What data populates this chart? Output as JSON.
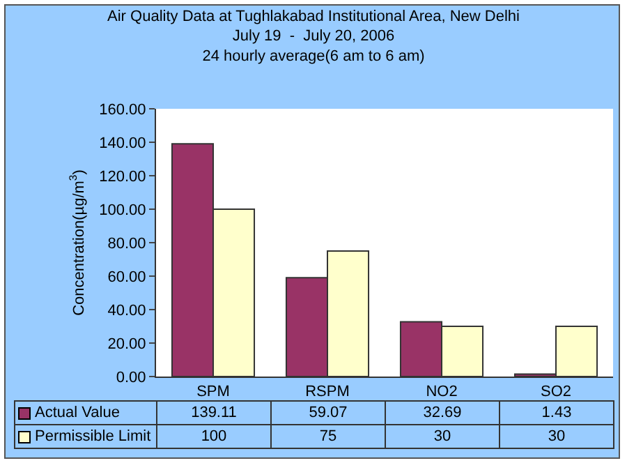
{
  "chart_data": {
    "type": "bar",
    "title": "Air Quality Data at Tughlakabad Institutional Area, New Delhi",
    "subtitle": "July 19  -  July 20, 2006\n24 hourly average(6 am to 6 am)",
    "ylabel": "Concentration(µg/m$^{3}$)",
    "categories": [
      "SPM",
      "RSPM",
      "NO2",
      "SO2"
    ],
    "series": [
      {
        "name": "Actual Value",
        "color": "#993366",
        "values": [
          139.11,
          59.07,
          32.69,
          1.43
        ]
      },
      {
        "name": "Permissible Limit",
        "color": "#ffffcc",
        "values": [
          100,
          75,
          30,
          30
        ]
      }
    ],
    "ylim": [
      0,
      160
    ],
    "yticks": [
      {
        "value": 0,
        "label": "0.00"
      },
      {
        "value": 20,
        "label": "20.00"
      },
      {
        "value": 40,
        "label": "40.00"
      },
      {
        "value": 60,
        "label": "60.00"
      },
      {
        "value": 80,
        "label": "80.00"
      },
      {
        "value": 100,
        "label": "100.00"
      },
      {
        "value": 120,
        "label": "120.00"
      },
      {
        "value": 140,
        "label": "140.00"
      },
      {
        "value": 160,
        "label": "160.00"
      }
    ],
    "grid": false,
    "legend": "bottom",
    "data_labels": true
  }
}
